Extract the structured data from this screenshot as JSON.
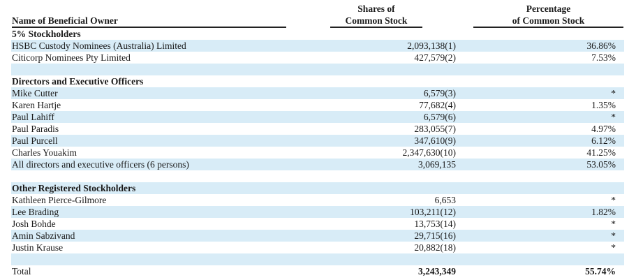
{
  "header": {
    "name_col": "Name of Beneficial Owner",
    "shares_col_line1": "Shares of",
    "shares_col_line2": "Common Stock",
    "pct_col_line1": "Percentage",
    "pct_col_line2": "of Common Stock"
  },
  "rows": [
    {
      "kind": "section",
      "name": "5% Stockholders",
      "shares": "",
      "pct": "",
      "shaded": false
    },
    {
      "kind": "data",
      "name": "HSBC Custody Nominees (Australia) Limited",
      "shares": "2,093,138(1)",
      "pct": "36.86%",
      "shaded": true
    },
    {
      "kind": "data",
      "name": "Citicorp Nominees Pty Limited",
      "shares": "427,579(2)",
      "pct": "7.53%",
      "shaded": false
    },
    {
      "kind": "blank",
      "name": "",
      "shares": "",
      "pct": "",
      "shaded": true
    },
    {
      "kind": "section",
      "name": "Directors and Executive Officers",
      "shares": "",
      "pct": "",
      "shaded": false
    },
    {
      "kind": "data",
      "name": "Mike Cutter",
      "shares": "6,579(3)",
      "pct": "*",
      "shaded": true
    },
    {
      "kind": "data",
      "name": "Karen Hartje",
      "shares": "77,682(4)",
      "pct": "1.35%",
      "shaded": false
    },
    {
      "kind": "data",
      "name": "Paul Lahiff",
      "shares": "6,579(6)",
      "pct": "*",
      "shaded": true
    },
    {
      "kind": "data",
      "name": "Paul Paradis",
      "shares": "283,055(7)",
      "pct": "4.97%",
      "shaded": false
    },
    {
      "kind": "data",
      "name": "Paul Purcell",
      "shares": "347,610(9)",
      "pct": "6.12%",
      "shaded": true
    },
    {
      "kind": "data",
      "name": "Charles Youakim",
      "shares": "2,347,630(10)",
      "pct": "41.25%",
      "shaded": false
    },
    {
      "kind": "data",
      "name": "All directors and executive officers (6 persons)",
      "shares": "3,069,135",
      "pct": "53.05%",
      "shaded": true
    },
    {
      "kind": "blank",
      "name": "",
      "shares": "",
      "pct": "",
      "shaded": false
    },
    {
      "kind": "section",
      "name": "Other Registered Stockholders",
      "shares": "",
      "pct": "",
      "shaded": true
    },
    {
      "kind": "data",
      "name": "Kathleen Pierce-Gilmore",
      "shares": "6,653",
      "pct": "*",
      "shaded": false
    },
    {
      "kind": "data",
      "name": "Lee Brading",
      "shares": "103,211(12)",
      "pct": "1.82%",
      "shaded": true
    },
    {
      "kind": "data",
      "name": "Josh Bohde",
      "shares": "13,753(14)",
      "pct": "*",
      "shaded": false
    },
    {
      "kind": "data",
      "name": "Amin Sabzivand",
      "shares": "29,715(16)",
      "pct": "*",
      "shaded": true
    },
    {
      "kind": "data",
      "name": "Justin Krause",
      "shares": "20,882(18)",
      "pct": "*",
      "shaded": false
    },
    {
      "kind": "blank",
      "name": "",
      "shares": "",
      "pct": "",
      "shaded": true
    },
    {
      "kind": "total",
      "name": "Total",
      "shares": "3,243,349",
      "pct": "55.74%",
      "shaded": false
    }
  ]
}
